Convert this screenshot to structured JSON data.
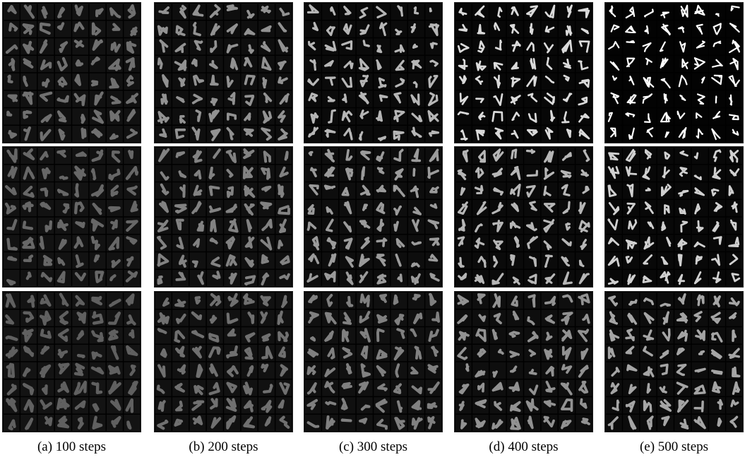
{
  "figure": {
    "columns": [
      {
        "caption": "(a) 100 steps",
        "steps": 100
      },
      {
        "caption": "(b) 200 steps",
        "steps": 200
      },
      {
        "caption": "(c) 300 steps",
        "steps": 300
      },
      {
        "caption": "(d) 400 steps",
        "steps": 400
      },
      {
        "caption": "(e) 500 steps",
        "steps": 500
      }
    ],
    "rows": 3,
    "grid_per_panel": "8x8",
    "colors": {
      "background": "#000000",
      "digits": "#ffffff"
    }
  }
}
